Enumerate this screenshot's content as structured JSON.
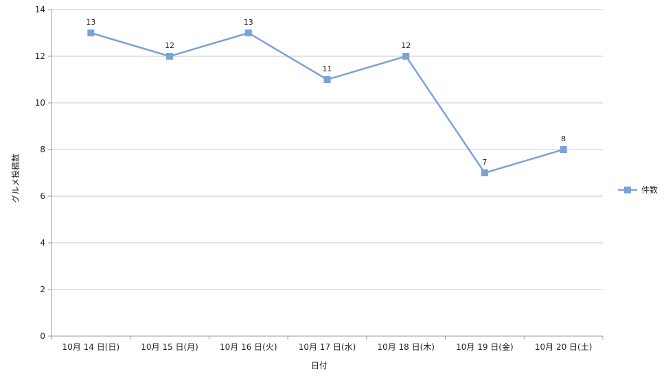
{
  "chart_data": {
    "type": "line",
    "title": "",
    "xlabel": "日付",
    "ylabel": "グルメ投稿数",
    "categories": [
      "10月 14 日(日)",
      "10月 15 日(月)",
      "10月 16 日(火)",
      "10月 17 日(水)",
      "10月 18 日(木)",
      "10月 19 日(金)",
      "10月 20 日(土)"
    ],
    "series": [
      {
        "name": "件数",
        "values": [
          13,
          12,
          13,
          11,
          12,
          7,
          8
        ],
        "color": "#7ba3d8"
      }
    ],
    "ylim": [
      0,
      14
    ],
    "yticks": [
      0,
      2,
      4,
      6,
      8,
      10,
      12,
      14
    ],
    "grid": true,
    "legend": "right",
    "data_labels": true
  }
}
